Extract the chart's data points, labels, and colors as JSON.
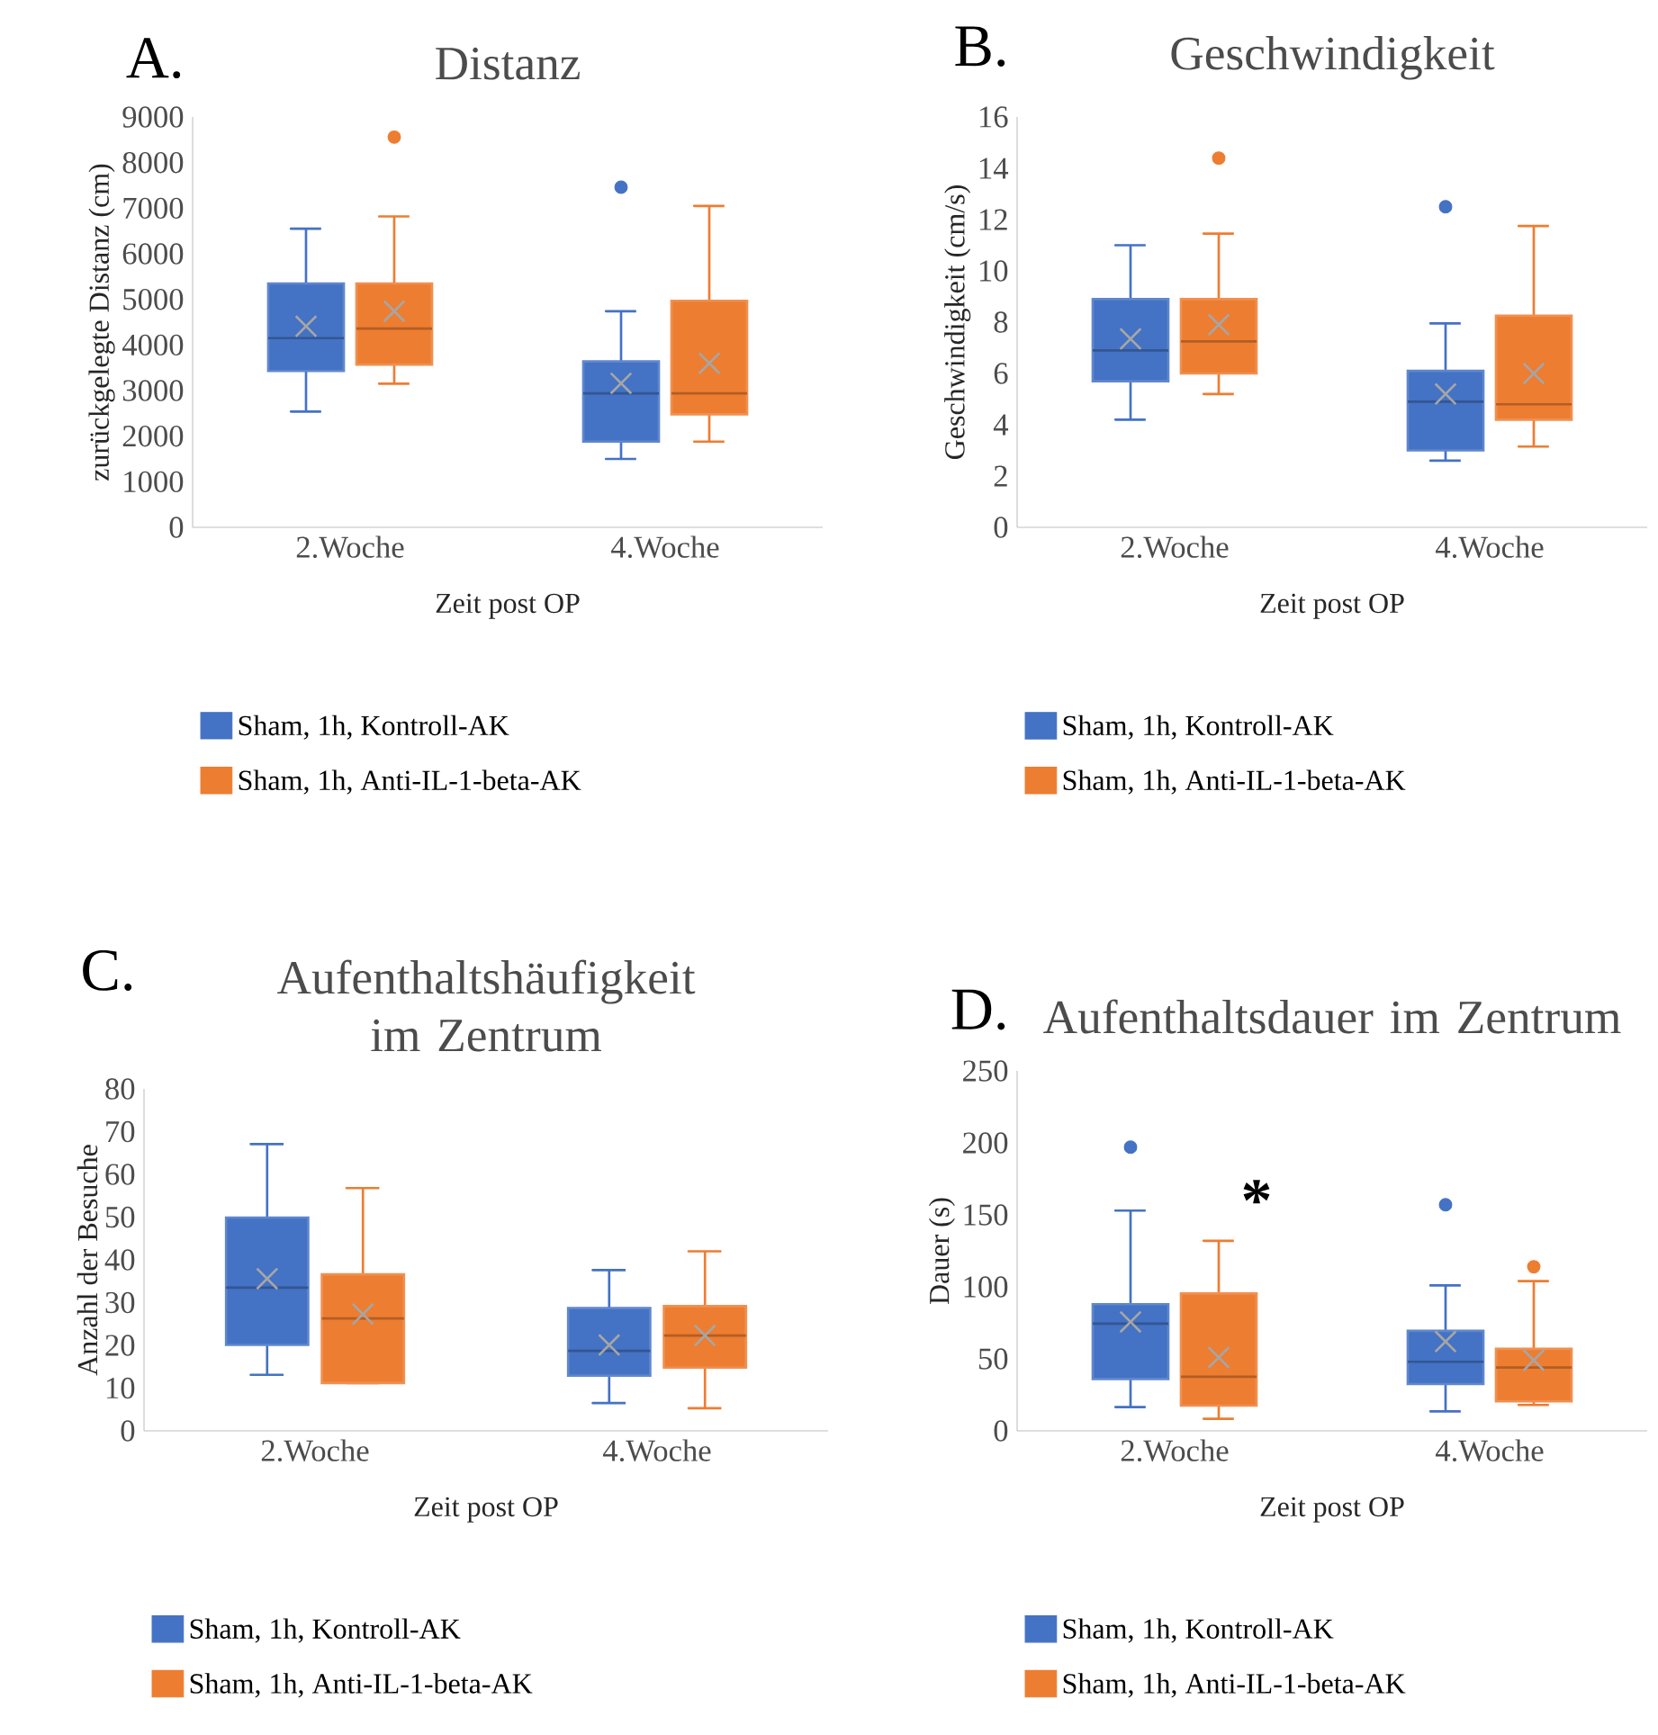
{
  "chart_data": [
    {
      "type": "box",
      "title": "Distanz",
      "xlabel": "Zeit post OP",
      "ylabel": "zurückgelegte Distanz (cm)",
      "categories": [
        "2.Woche",
        "4.Woche"
      ],
      "ylim": [
        0,
        9000
      ],
      "yticks": [
        0,
        1000,
        2000,
        3000,
        4000,
        5000,
        6000,
        7000,
        8000,
        9000
      ],
      "legend": "bottom",
      "annotations": [
        "A."
      ],
      "series": [
        {
          "name": "Sham, 1h, Kontroll-AK",
          "color": "#4472c4",
          "boxes": [
            {
              "low": 2540,
              "q1": 3430,
              "median": 4150,
              "q3": 5350,
              "high": 6550,
              "mean": 4410
            },
            {
              "low": 1500,
              "q1": 1880,
              "median": 2940,
              "q3": 3640,
              "high": 4740,
              "mean": 3160,
              "outliers": [
                7460
              ]
            }
          ]
        },
        {
          "name": "Sham, 1h, Anti-IL-1-beta-AK",
          "color": "#ed7d31",
          "boxes": [
            {
              "low": 3150,
              "q1": 3570,
              "median": 4360,
              "q3": 5350,
              "high": 6820,
              "mean": 4740,
              "outliers": [
                8560
              ]
            },
            {
              "low": 1880,
              "q1": 2480,
              "median": 2940,
              "q3": 4970,
              "high": 7050,
              "mean": 3600
            }
          ]
        }
      ]
    },
    {
      "type": "box",
      "title": "Geschwindigkeit",
      "xlabel": "Zeit post OP",
      "ylabel": "Geschwindigkeit (cm/s)",
      "categories": [
        "2.Woche",
        "4.Woche"
      ],
      "ylim": [
        0,
        16
      ],
      "yticks": [
        0,
        2,
        4,
        6,
        8,
        10,
        12,
        14,
        16
      ],
      "legend": "bottom",
      "annotations": [
        "B."
      ],
      "series": [
        {
          "name": "Sham, 1h, Kontroll-AK",
          "color": "#4472c4",
          "boxes": [
            {
              "low": 4.2,
              "q1": 5.7,
              "median": 6.9,
              "q3": 8.9,
              "high": 11.0,
              "mean": 7.35
            },
            {
              "low": 2.6,
              "q1": 3.0,
              "median": 4.9,
              "q3": 6.1,
              "high": 7.95,
              "mean": 5.2,
              "outliers": [
                12.5
              ]
            }
          ]
        },
        {
          "name": "Sham, 1h, Anti-IL-1-beta-AK",
          "color": "#ed7d31",
          "boxes": [
            {
              "low": 5.2,
              "q1": 6.0,
              "median": 7.25,
              "q3": 8.9,
              "high": 11.45,
              "mean": 7.9,
              "outliers": [
                14.4
              ]
            },
            {
              "low": 3.15,
              "q1": 4.2,
              "median": 4.8,
              "q3": 8.25,
              "high": 11.75,
              "mean": 6.0
            }
          ]
        }
      ]
    },
    {
      "type": "box",
      "title": "Aufenthaltshäufigkeit im Zentrum",
      "xlabel": "Zeit post OP",
      "ylabel": "Anzahl der Besuche",
      "categories": [
        "2.Woche",
        "4.Woche"
      ],
      "ylim": [
        0,
        80
      ],
      "yticks": [
        0,
        10,
        20,
        30,
        40,
        50,
        60,
        70,
        80
      ],
      "legend": "bottom",
      "annotations": [
        "C."
      ],
      "series": [
        {
          "name": "Sham, 1h, Kontroll-AK",
          "color": "#4472c4",
          "boxes": [
            {
              "low": 13.1,
              "q1": 20.1,
              "median": 33.5,
              "q3": 49.9,
              "high": 67.1,
              "mean": 35.6
            },
            {
              "low": 6.5,
              "q1": 12.9,
              "median": 18.7,
              "q3": 28.7,
              "high": 37.6,
              "mean": 20.1
            }
          ]
        },
        {
          "name": "Sham, 1h, Anti-IL-1-beta-AK",
          "color": "#ed7d31",
          "boxes": [
            {
              "low": 11.2,
              "q1": 11.2,
              "median": 26.3,
              "q3": 36.6,
              "high": 56.8,
              "mean": 27.3
            },
            {
              "low": 5.3,
              "q1": 14.8,
              "median": 22.3,
              "q3": 29.2,
              "high": 42.0,
              "mean": 22.3
            }
          ]
        }
      ]
    },
    {
      "type": "box",
      "title": "Aufenthaltsdauer im Zentrum",
      "xlabel": "Zeit post OP",
      "ylabel": "Dauer (s)",
      "categories": [
        "2.Woche",
        "4.Woche"
      ],
      "ylim": [
        0,
        250
      ],
      "yticks": [
        0,
        50,
        100,
        150,
        200,
        250
      ],
      "legend": "bottom",
      "annotations": [
        "D.",
        "*"
      ],
      "series": [
        {
          "name": "Sham, 1h, Kontroll-AK",
          "color": "#4472c4",
          "boxes": [
            {
              "low": 16.5,
              "q1": 36,
              "median": 74.5,
              "q3": 88,
              "high": 153,
              "mean": 75.7,
              "outliers": [
                197
              ]
            },
            {
              "low": 13.5,
              "q1": 32.5,
              "median": 48,
              "q3": 69.5,
              "high": 101,
              "mean": 62,
              "outliers": [
                157
              ]
            }
          ]
        },
        {
          "name": "Sham, 1h, Anti-IL-1-beta-AK",
          "color": "#ed7d31",
          "boxes": [
            {
              "low": 8.4,
              "q1": 17.5,
              "median": 37.6,
              "q3": 95.4,
              "high": 132,
              "mean": 51
            },
            {
              "low": 18,
              "q1": 20.5,
              "median": 44,
              "q3": 57,
              "high": 104,
              "mean": 49,
              "outliers": [
                114
              ]
            }
          ]
        }
      ]
    }
  ]
}
